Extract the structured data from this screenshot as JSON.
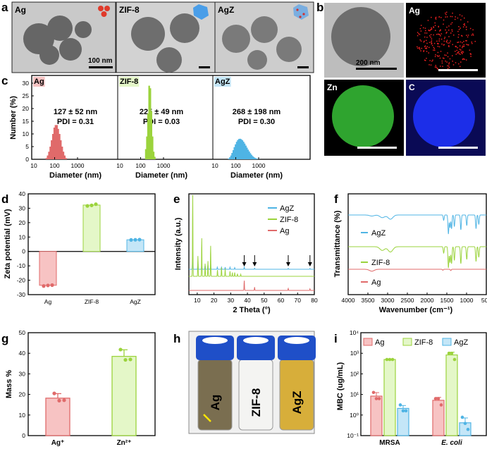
{
  "panel_labels": {
    "a": "a",
    "b": "b",
    "c": "c",
    "d": "d",
    "e": "e",
    "f": "f",
    "g": "g",
    "h": "h",
    "i": "i"
  },
  "panel_a": {
    "images": [
      "Ag",
      "ZIF-8",
      "AgZ"
    ],
    "scale_bar": "100 nm"
  },
  "panel_b": {
    "scale_bar": "200 nm",
    "maps": [
      "Ag",
      "Zn",
      "C"
    ],
    "colors": [
      "#e82020",
      "#3fc13f",
      "#1c2ee8"
    ]
  },
  "panel_h": {
    "vials": [
      "Ag",
      "ZIF-8",
      "AgZ"
    ],
    "cap_color": "#1f4fc8"
  },
  "colors": {
    "Ag": "#e06a6a",
    "ZIF-8": "#9bd33c",
    "AgZ": "#4fb4e4",
    "Ag_fill": "#f7c3c3",
    "ZIF-8_fill": "#e4f7c8",
    "AgZ_fill": "#c4e6f7"
  },
  "chart_data": [
    {
      "id": "c",
      "type": "bar",
      "ylabel": "Number (%)",
      "xlabel": "Diameter (nm)",
      "xscale": "log",
      "xlim": [
        10,
        12000
      ],
      "ylim": [
        0,
        32
      ],
      "yticks": [
        0,
        5,
        10,
        15,
        20,
        25,
        30
      ],
      "xticks": [
        10,
        100,
        1000
      ],
      "series": [
        {
          "name": "Ag",
          "annotation": [
            "127 ± 52 nm",
            "PDI = 0.31"
          ],
          "x": [
            44,
            50,
            57,
            65,
            74,
            85,
            97,
            110,
            126,
            143,
            164,
            186,
            213,
            242,
            276,
            315
          ],
          "values": [
            0.5,
            1.5,
            3,
            5,
            7.5,
            10,
            12.5,
            13.5,
            13.5,
            12,
            10,
            7.5,
            5,
            3,
            1.5,
            0.5
          ]
        },
        {
          "name": "ZIF-8",
          "annotation": [
            "225 ± 49 nm",
            "PDI = 0.03"
          ],
          "x": [
            170,
            190,
            212,
            237,
            265,
            296,
            331,
            370,
            414
          ],
          "values": [
            4,
            9,
            18,
            29,
            28,
            19,
            9,
            3,
            1
          ]
        },
        {
          "name": "AgZ",
          "annotation": [
            "268 ± 198 nm",
            "PDI = 0.30"
          ],
          "x": [
            50,
            56,
            63,
            70,
            79,
            88,
            99,
            111,
            124,
            139,
            155,
            174,
            195,
            218,
            244,
            274,
            307,
            343,
            385,
            431,
            482,
            540,
            605,
            678,
            759,
            850,
            952,
            1066
          ],
          "values": [
            0.3,
            0.8,
            1.5,
            2.5,
            3.6,
            4.8,
            5.9,
            6.9,
            7.6,
            8.0,
            8.1,
            7.9,
            7.5,
            6.9,
            6.2,
            5.4,
            4.6,
            3.8,
            3.1,
            2.4,
            1.8,
            1.3,
            0.9,
            0.6,
            0.4,
            0.2,
            0.1,
            0.05
          ]
        }
      ]
    },
    {
      "id": "d",
      "type": "bar",
      "ylabel": "Zeta potential (mV)",
      "categories": [
        "Ag",
        "ZIF-8",
        "AgZ"
      ],
      "values": [
        -23.5,
        32.2,
        8.1
      ],
      "points": [
        [
          -24,
          -23.6,
          -23.4
        ],
        [
          31.6,
          32,
          32.8
        ],
        [
          8,
          8.1,
          8.2
        ]
      ],
      "ylim": [
        -30,
        40
      ],
      "yticks": [
        -30,
        -20,
        -10,
        0,
        10,
        20,
        30,
        40
      ]
    },
    {
      "id": "e",
      "type": "line",
      "xlabel": "2 Theta (°)",
      "ylabel": "Intensity (a.u.)",
      "xlim": [
        5,
        80
      ],
      "xticks": [
        10,
        20,
        30,
        40,
        50,
        60,
        70,
        80
      ],
      "arrows_at": [
        38.1,
        44.3,
        64.4,
        77.4
      ],
      "series": [
        {
          "name": "AgZ",
          "peaks": [
            [
              7.3,
              0.9
            ],
            [
              10.4,
              0.35
            ],
            [
              12.7,
              0.25
            ],
            [
              14.7,
              0.2
            ],
            [
              16.4,
              0.2
            ],
            [
              18,
              0.3
            ],
            [
              22,
              0.1
            ],
            [
              24.5,
              0.1
            ],
            [
              26.7,
              0.1
            ],
            [
              29.6,
              0.1
            ],
            [
              32.4,
              0.08
            ],
            [
              38.1,
              0.1
            ],
            [
              44.3,
              0.05
            ],
            [
              64.4,
              0.04
            ],
            [
              77.4,
              0.04
            ]
          ]
        },
        {
          "name": "ZIF-8",
          "peaks": [
            [
              7.3,
              3.2
            ],
            [
              10.4,
              0.8
            ],
            [
              12.7,
              1.5
            ],
            [
              14.7,
              0.5
            ],
            [
              16.4,
              0.6
            ],
            [
              18,
              1.2
            ],
            [
              22.1,
              0.25
            ],
            [
              24.5,
              0.35
            ],
            [
              26.7,
              0.3
            ],
            [
              29.6,
              0.2
            ],
            [
              31,
              0.15
            ],
            [
              32.4,
              0.15
            ],
            [
              34,
              0.1
            ],
            [
              36,
              0.08
            ]
          ]
        },
        {
          "name": "Ag",
          "peaks": [
            [
              38.1,
              0.6
            ],
            [
              44.3,
              0.2
            ],
            [
              64.4,
              0.12
            ],
            [
              77.4,
              0.1
            ]
          ]
        }
      ]
    },
    {
      "id": "f",
      "type": "line",
      "xlabel": "Wavenumber (cm⁻¹)",
      "ylabel": "Transmittance (%)",
      "xlim": [
        4000,
        500
      ],
      "xticks": [
        4000,
        3500,
        3000,
        2500,
        2000,
        1500,
        1000,
        500
      ],
      "series": [
        {
          "name": "AgZ",
          "dips": [
            [
              3400,
              0.1
            ],
            [
              3135,
              0.25
            ],
            [
              2929,
              0.4
            ],
            [
              1580,
              0.5
            ],
            [
              1460,
              1.8
            ],
            [
              1420,
              1.2
            ],
            [
              1380,
              1.3
            ],
            [
              1310,
              1.1
            ],
            [
              1145,
              1.4
            ],
            [
              995,
              1.0
            ],
            [
              760,
              1.3
            ],
            [
              690,
              0.9
            ]
          ]
        },
        {
          "name": "ZIF-8",
          "dips": [
            [
              3135,
              0.35
            ],
            [
              2929,
              0.5
            ],
            [
              1580,
              0.6
            ],
            [
              1460,
              2.0
            ],
            [
              1420,
              1.5
            ],
            [
              1380,
              1.6
            ],
            [
              1310,
              1.3
            ],
            [
              1145,
              1.6
            ],
            [
              995,
              1.2
            ],
            [
              760,
              1.4
            ],
            [
              690,
              1.0
            ]
          ]
        },
        {
          "name": "Ag",
          "dips": [
            [
              3400,
              0.3
            ],
            [
              1600,
              0.15
            ],
            [
              1400,
              0.2
            ]
          ]
        }
      ]
    },
    {
      "id": "g",
      "type": "bar",
      "ylabel": "Mass %",
      "categories": [
        "Ag⁺",
        "Zn²⁺"
      ],
      "values": [
        18.2,
        38.5
      ],
      "errors": [
        2.2,
        3.2
      ],
      "points": [
        [
          20.5,
          17,
          17.2
        ],
        [
          41.8,
          36.8,
          37
        ]
      ],
      "ylim": [
        0,
        50
      ],
      "yticks": [
        0,
        10,
        20,
        30,
        40,
        50
      ]
    },
    {
      "id": "i",
      "type": "bar",
      "ylabel": "MBC (ug/mL)",
      "yscale": "log",
      "ylim": [
        0.1,
        10000
      ],
      "yticks": [
        "10⁻¹",
        "10⁰",
        "10¹",
        "10²",
        "10³",
        "10⁴"
      ],
      "categories": [
        "MRSA",
        "E. coli"
      ],
      "series": [
        {
          "name": "Ag",
          "values": [
            8.3,
            5.2
          ],
          "errors": [
            4,
            2
          ],
          "points": [
            [
              12.5,
              6.25,
              6.25
            ],
            [
              6.25,
              6.25,
              3.1
            ]
          ]
        },
        {
          "name": "ZIF-8",
          "values": [
            500,
            833
          ],
          "errors": [
            0,
            300
          ],
          "points": [
            [
              500,
              500,
              500
            ],
            [
              1000,
              1000,
              500
            ]
          ]
        },
        {
          "name": "AgZ",
          "values": [
            2.1,
            0.42
          ],
          "errors": [
            0.8,
            0.3
          ],
          "points": [
            [
              3.1,
              1.6,
              1.6
            ],
            [
              0.78,
              0.39,
              0.2
            ]
          ]
        }
      ]
    }
  ]
}
